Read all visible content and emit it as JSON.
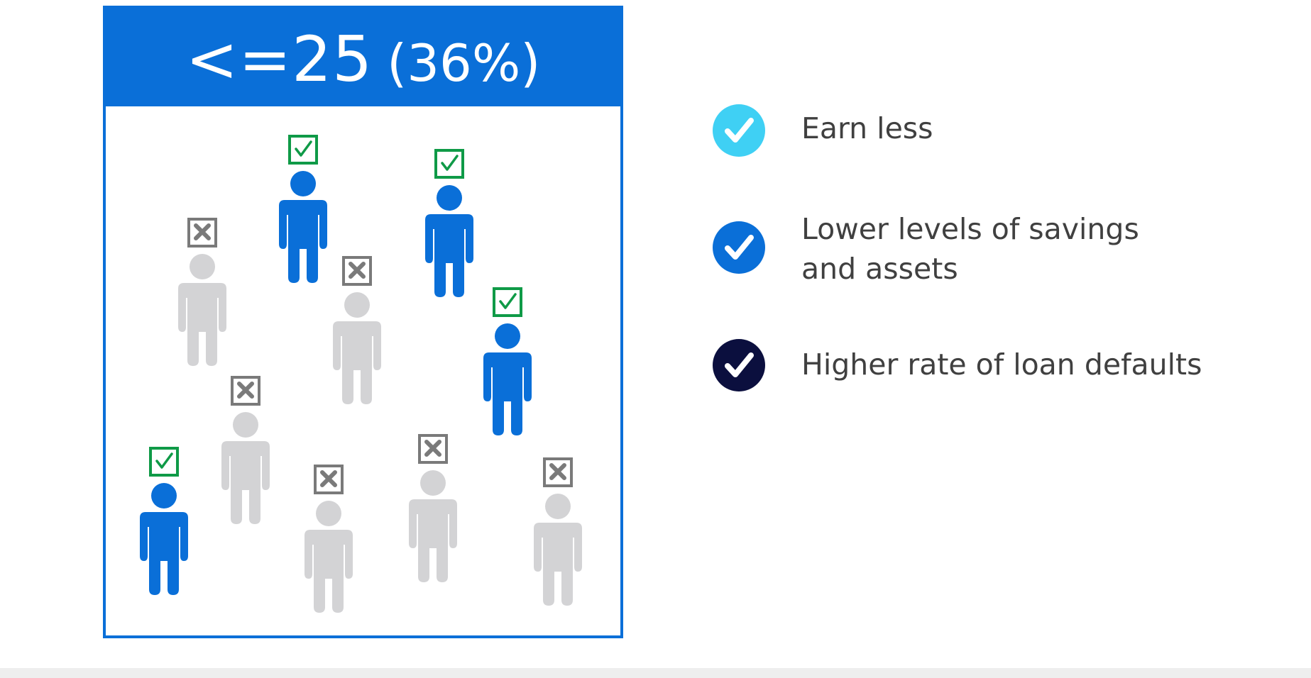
{
  "panel": {
    "title_main": "<=25",
    "title_pct": "(36%)"
  },
  "people": [
    {
      "status": "check",
      "color": "#0a6fd8"
    },
    {
      "status": "check",
      "color": "#0a6fd8"
    },
    {
      "status": "cross",
      "color": "#d3d3d5"
    },
    {
      "status": "cross",
      "color": "#d3d3d5"
    },
    {
      "status": "check",
      "color": "#0a6fd8"
    },
    {
      "status": "cross",
      "color": "#d3d3d5"
    },
    {
      "status": "check",
      "color": "#0a6fd8"
    },
    {
      "status": "cross",
      "color": "#d3d3d5"
    },
    {
      "status": "cross",
      "color": "#d3d3d5"
    },
    {
      "status": "cross",
      "color": "#d3d3d5"
    }
  ],
  "legend": [
    {
      "text_line1": "Earn less",
      "text_line2": "",
      "color": "#3fd0f4"
    },
    {
      "text_line1": "Lower levels of savings",
      "text_line2": "and assets",
      "color": "#0a6fd8"
    },
    {
      "text_line1": "Higher rate of loan defaults",
      "text_line2": "",
      "color": "#0b0f3e"
    }
  ],
  "colors": {
    "accent": "#0a6fd8",
    "check_box": "#0f9a47",
    "cross_box": "#7a7a7a",
    "inactive_person": "#d3d3d5"
  }
}
